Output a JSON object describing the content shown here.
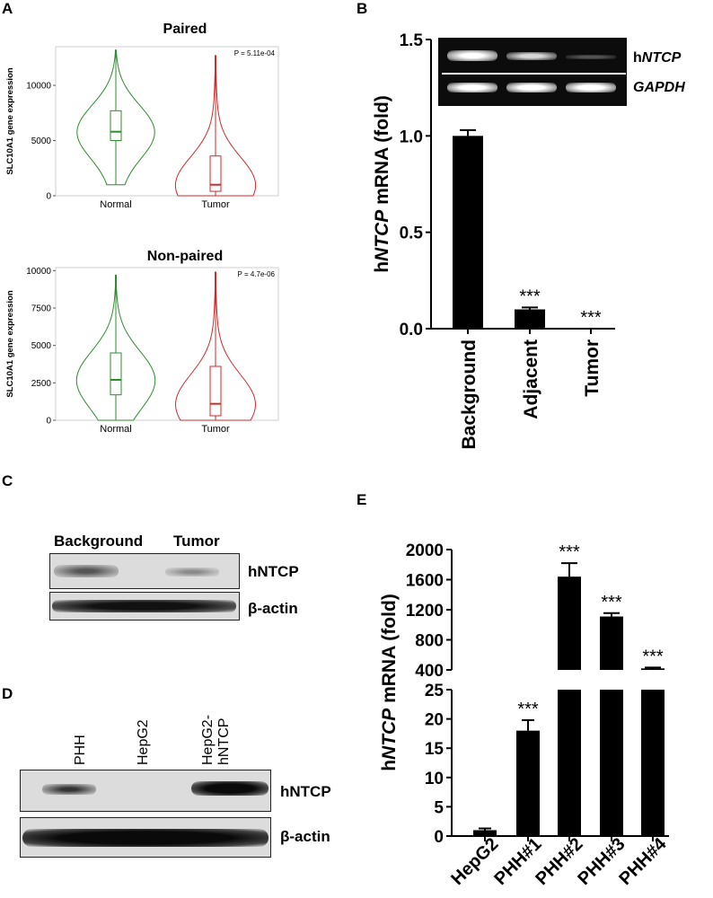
{
  "panels": {
    "a": "A",
    "b": "B",
    "c": "C",
    "d": "D",
    "e": "E"
  },
  "chart_data": [
    {
      "id": "A-paired",
      "type": "violin",
      "title": "Paired",
      "ylabel": "SLC10A1 gene expression",
      "categories": [
        "Normal",
        "Tumor"
      ],
      "yticks": [
        0,
        5000,
        10000
      ],
      "ylim": [
        0,
        13500
      ],
      "annotation": "P = 5.11e-04",
      "series": [
        {
          "name": "Normal",
          "color": "#2e8b2e",
          "min": 1000,
          "q1": 5000,
          "median": 5800,
          "q3": 7700,
          "max": 13200
        },
        {
          "name": "Tumor",
          "color": "#cc2b2b",
          "min": 0,
          "q1": 400,
          "median": 1000,
          "q3": 3600,
          "max": 12700
        }
      ]
    },
    {
      "id": "A-nonpaired",
      "type": "violin",
      "title": "Non-paired",
      "ylabel": "SLC10A1 gene expression",
      "categories": [
        "Normal",
        "Tumor"
      ],
      "yticks": [
        0,
        2500,
        5000,
        7500,
        10000
      ],
      "ylim": [
        0,
        10200
      ],
      "annotation": "P = 4.7e-06",
      "series": [
        {
          "name": "Normal",
          "color": "#2e8b2e",
          "min": 0,
          "q1": 1700,
          "median": 2700,
          "q3": 4500,
          "max": 9700
        },
        {
          "name": "Tumor",
          "color": "#cc2b2b",
          "min": 0,
          "q1": 300,
          "median": 1100,
          "q3": 3600,
          "max": 9900
        }
      ]
    },
    {
      "id": "B",
      "type": "bar",
      "ylabel_prefix": "h",
      "ylabel_gene": "NTCP",
      "ylabel_suffix": " mRNA (fold)",
      "categories": [
        "Background",
        "Adjacent",
        "Tumor"
      ],
      "values": [
        1.0,
        0.1,
        0.0
      ],
      "errors": [
        0.03,
        0.01,
        0.0
      ],
      "significance": [
        "",
        "***",
        "***"
      ],
      "ytick_labels": [
        "0.0",
        "0.5",
        "1.0",
        "1.5"
      ],
      "ylim": [
        0,
        1.5
      ],
      "gel_labels": {
        "ntcp_prefix": "h",
        "ntcp_gene": "NTCP",
        "gapdh": "GAPDH"
      }
    },
    {
      "id": "E",
      "type": "bar",
      "broken_axis": true,
      "ylabel_prefix": "h",
      "ylabel_gene": "NTCP",
      "ylabel_suffix": " mRNA (fold)",
      "categories": [
        "HepG2",
        "PHH#1",
        "PHH#2",
        "PHH#3",
        "PHH#4"
      ],
      "values": [
        1,
        18,
        1640,
        1110,
        420
      ],
      "errors": [
        0.3,
        1.8,
        180,
        45,
        12
      ],
      "significance": [
        "",
        "***",
        "***",
        "***",
        "***"
      ],
      "lower_ticks": [
        0,
        5,
        10,
        15,
        20,
        25
      ],
      "upper_ticks": [
        400,
        800,
        1200,
        1600,
        2000
      ],
      "lower_range": [
        0,
        25
      ],
      "upper_range": [
        400,
        2000
      ]
    }
  ],
  "blots": {
    "c": {
      "lanes": [
        "Background",
        "Tumor"
      ],
      "rows": [
        "hNTCP",
        "β-actin"
      ]
    },
    "d": {
      "lane1": "PHH",
      "lane2": "HepG2",
      "lane3a": "HepG2-",
      "lane3b": "hNTCP",
      "rows": [
        "hNTCP",
        "β-actin"
      ]
    }
  }
}
